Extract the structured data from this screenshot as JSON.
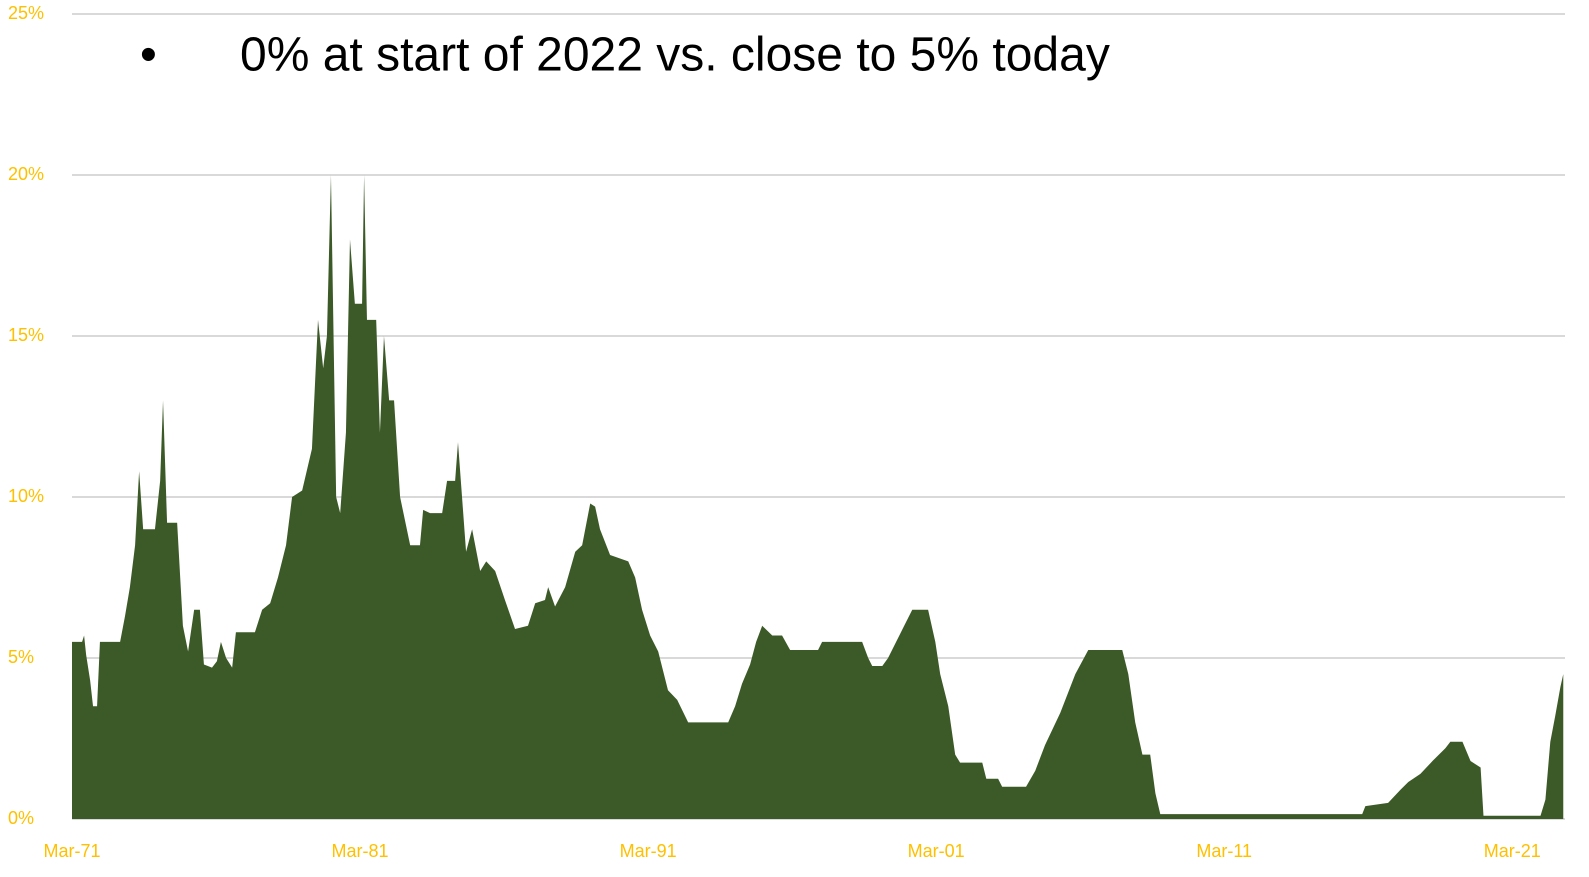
{
  "chart_data": {
    "type": "area",
    "title": "0% at start of 2022 vs. close to 5% today",
    "color": "#3c5a27",
    "grid": true,
    "xlim": [
      1971.17,
      2023.0
    ],
    "xticks": [
      {
        "value": 1971.17,
        "label": "Mar-71"
      },
      {
        "value": 1981.17,
        "label": "Mar-81"
      },
      {
        "value": 1991.17,
        "label": "Mar-91"
      },
      {
        "value": 2001.17,
        "label": "Mar-01"
      },
      {
        "value": 2011.17,
        "label": "Mar-11"
      },
      {
        "value": 2021.17,
        "label": "Mar-21"
      }
    ],
    "ylim": [
      0,
      25
    ],
    "yticks": [
      {
        "value": 0,
        "label": "0%"
      },
      {
        "value": 5,
        "label": "5%"
      },
      {
        "value": 10,
        "label": "10%"
      },
      {
        "value": 15,
        "label": "15%"
      },
      {
        "value": 20,
        "label": "20%"
      },
      {
        "value": 25,
        "label": "25%"
      }
    ],
    "x": [
      1971.17,
      1971.52,
      1971.59,
      1971.66,
      1971.8,
      1971.9,
      1972.04,
      1972.14,
      1972.84,
      1973.01,
      1973.18,
      1973.36,
      1973.5,
      1973.64,
      1974.05,
      1974.23,
      1974.33,
      1974.47,
      1974.82,
      1975.02,
      1975.2,
      1975.41,
      1975.61,
      1975.75,
      1976.03,
      1976.2,
      1976.34,
      1976.52,
      1976.73,
      1976.86,
      1977.52,
      1977.77,
      1978.05,
      1978.32,
      1978.6,
      1978.81,
      1979.16,
      1979.5,
      1979.71,
      1979.89,
      1980.02,
      1980.16,
      1980.34,
      1980.48,
      1980.68,
      1980.82,
      1980.99,
      1981.24,
      1981.31,
      1981.41,
      1981.73,
      1981.86,
      1982.0,
      1982.18,
      1982.35,
      1982.56,
      1982.91,
      1983.25,
      1983.36,
      1983.6,
      1984.02,
      1984.19,
      1984.47,
      1984.57,
      1984.85,
      1985.06,
      1985.34,
      1985.55,
      1985.86,
      1986.2,
      1986.55,
      1987.0,
      1987.25,
      1987.59,
      1987.7,
      1987.94,
      1988.29,
      1988.64,
      1988.88,
      1989.16,
      1989.33,
      1989.5,
      1989.85,
      1990.48,
      1990.72,
      1990.96,
      1991.24,
      1991.52,
      1991.86,
      1992.18,
      1992.56,
      1993.95,
      1994.19,
      1994.43,
      1994.71,
      1994.92,
      1995.13,
      1995.48,
      1995.82,
      1996.1,
      1997.07,
      1997.21,
      1998.6,
      1998.81,
      1998.95,
      1999.3,
      1999.5,
      1999.78,
      2000.06,
      2000.34,
      2000.89,
      2001.14,
      2001.31,
      2001.59,
      2001.83,
      2002.0,
      2002.77,
      2002.91,
      2003.32,
      2003.46,
      2004.29,
      2004.61,
      2004.95,
      2005.48,
      2006.0,
      2006.45,
      2007.63,
      2007.84,
      2008.08,
      2008.33,
      2008.6,
      2008.78,
      2008.95,
      2015.96,
      2016.07,
      2016.86,
      2017.28,
      2017.56,
      2017.98,
      2018.4,
      2018.85,
      2019.02,
      2019.44,
      2019.72,
      2020.07,
      2020.17,
      2022.15,
      2022.32,
      2022.49,
      2022.66,
      2022.84,
      2022.94
    ],
    "values": [
      5.5,
      5.5,
      5.7,
      5.1,
      4.3,
      3.5,
      3.5,
      5.5,
      5.5,
      6.3,
      7.2,
      8.5,
      10.8,
      9.0,
      9.0,
      10.5,
      13.0,
      9.2,
      9.2,
      6.0,
      5.2,
      6.5,
      6.5,
      4.8,
      4.7,
      4.9,
      5.5,
      5.0,
      4.7,
      5.8,
      5.8,
      6.5,
      6.7,
      7.5,
      8.5,
      10.0,
      10.2,
      11.5,
      15.5,
      14.0,
      15.0,
      20.0,
      10.0,
      9.5,
      12.0,
      18.0,
      16.0,
      16.0,
      20.0,
      15.5,
      15.5,
      12.0,
      15.0,
      13.0,
      13.0,
      10.0,
      8.5,
      8.5,
      9.6,
      9.5,
      9.5,
      10.5,
      10.5,
      11.7,
      8.3,
      9.0,
      7.7,
      8.0,
      7.7,
      6.8,
      5.9,
      6.0,
      6.7,
      6.8,
      7.2,
      6.6,
      7.2,
      8.3,
      8.5,
      9.8,
      9.7,
      9.0,
      8.2,
      8.0,
      7.5,
      6.5,
      5.7,
      5.2,
      4.0,
      3.7,
      3.0,
      3.0,
      3.5,
      4.2,
      4.8,
      5.5,
      6.0,
      5.7,
      5.7,
      5.25,
      5.25,
      5.5,
      5.5,
      5.0,
      4.75,
      4.75,
      5.0,
      5.5,
      6.0,
      6.5,
      6.5,
      5.5,
      4.5,
      3.5,
      2.0,
      1.75,
      1.75,
      1.25,
      1.25,
      1.0,
      1.0,
      1.5,
      2.3,
      3.3,
      4.5,
      5.25,
      5.25,
      4.5,
      3.0,
      2.0,
      2.0,
      0.8,
      0.15,
      0.15,
      0.4,
      0.5,
      0.9,
      1.15,
      1.4,
      1.8,
      2.2,
      2.4,
      2.4,
      1.8,
      1.6,
      0.1,
      0.1,
      0.6,
      2.4,
      3.2,
      4.1,
      4.5
    ]
  }
}
